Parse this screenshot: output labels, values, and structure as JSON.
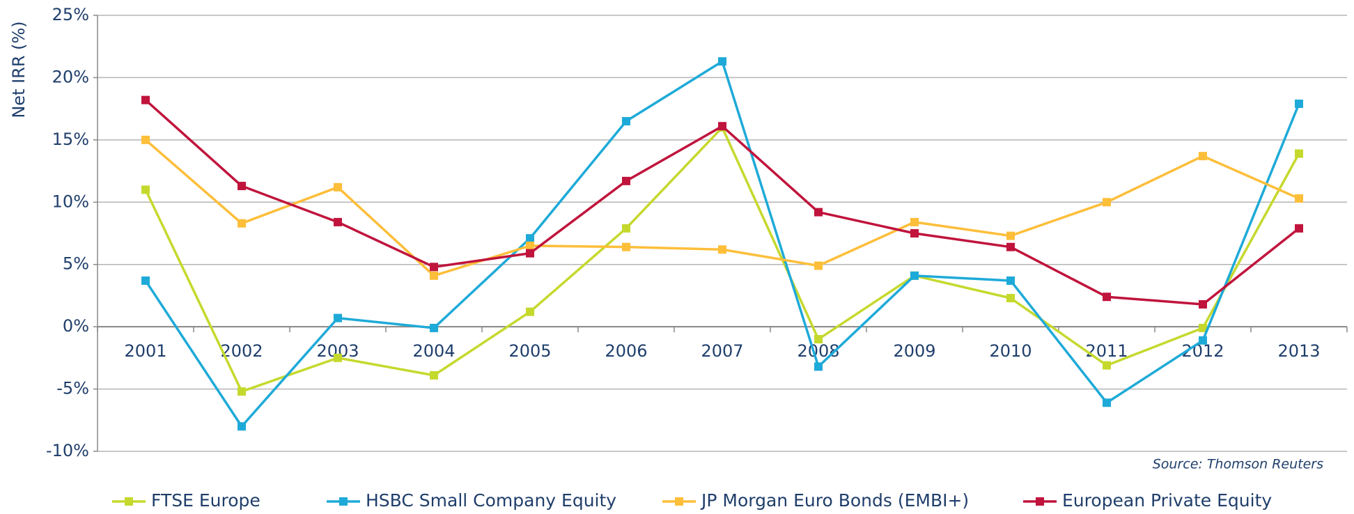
{
  "chart_data": {
    "type": "line",
    "y_label": "Net IRR (%)",
    "source": "Source: Thomson Reuters",
    "categories": [
      "2001",
      "2002",
      "2003",
      "2004",
      "2005",
      "2006",
      "2007",
      "2008",
      "2009",
      "2010",
      "2011",
      "2012",
      "2013"
    ],
    "ylim": [
      -10,
      25
    ],
    "yticks": [
      {
        "value": -10,
        "label": "-10%"
      },
      {
        "value": -5,
        "label": "-5%"
      },
      {
        "value": 0,
        "label": "0%"
      },
      {
        "value": 5,
        "label": "5%"
      },
      {
        "value": 10,
        "label": "10%"
      },
      {
        "value": 15,
        "label": "15%"
      },
      {
        "value": 20,
        "label": "20%"
      },
      {
        "value": 25,
        "label": "25%"
      }
    ],
    "grid": true,
    "legend": "bottom",
    "series": [
      {
        "name": "FTSE Europe",
        "color": "#c5d92d",
        "values": [
          11.0,
          -5.2,
          -2.5,
          -3.9,
          1.2,
          7.9,
          16.0,
          -1.0,
          4.1,
          2.3,
          -3.1,
          -0.1,
          13.9
        ]
      },
      {
        "name": "HSBC Small Company Equity",
        "color": "#1eaad8",
        "values": [
          3.7,
          -8.0,
          0.7,
          -0.1,
          7.1,
          16.5,
          21.3,
          -3.2,
          4.1,
          3.7,
          -6.1,
          -1.1,
          17.9
        ]
      },
      {
        "name": "JP Morgan Euro Bonds (EMBI+)",
        "color": "#fdbe3a",
        "values": [
          15.0,
          8.3,
          11.2,
          4.1,
          6.5,
          6.4,
          6.2,
          4.9,
          8.4,
          7.3,
          10.0,
          13.7,
          10.3
        ]
      },
      {
        "name": "European Private Equity",
        "color": "#c0143c",
        "values": [
          18.2,
          11.3,
          8.4,
          4.8,
          5.9,
          11.7,
          16.1,
          9.2,
          7.5,
          6.4,
          2.4,
          1.8,
          7.9
        ]
      }
    ]
  }
}
